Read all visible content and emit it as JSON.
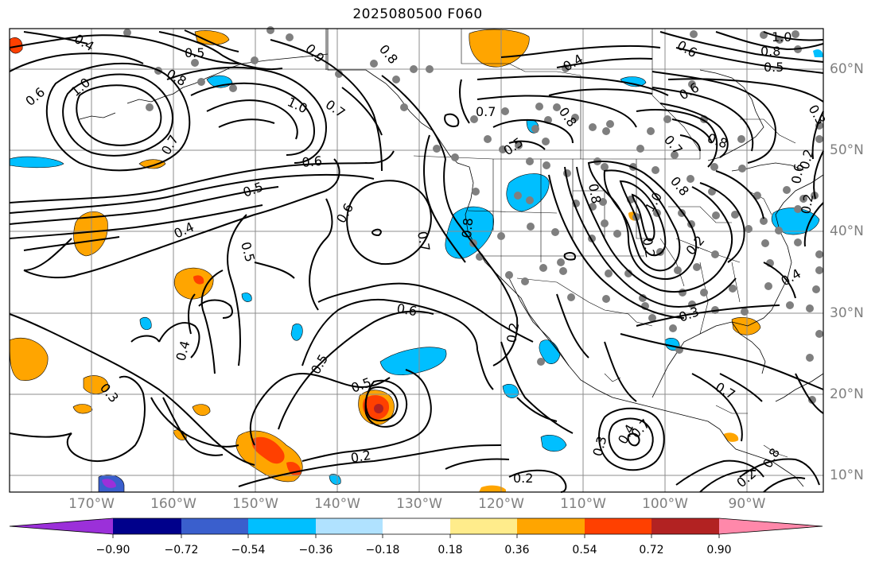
{
  "title": "2025080500 F060",
  "longitude_labels": [
    "170°W",
    "160°W",
    "150°W",
    "140°W",
    "130°W",
    "120°W",
    "110°W",
    "100°W",
    "90°W"
  ],
  "latitude_labels": [
    "60°N",
    "50°N",
    "40°N",
    "30°N",
    "20°N",
    "10°N"
  ],
  "colorbar": {
    "tick_labels": [
      "−0.90",
      "−0.72",
      "−0.54",
      "−0.36",
      "−0.18",
      "0.18",
      "0.36",
      "0.54",
      "0.72",
      "0.90"
    ],
    "colors": [
      "#9b30d9",
      "#00008b",
      "#3a5fcd",
      "#00bfff",
      "#b0e2ff",
      "#ffffff",
      "#ffec8b",
      "#ffa500",
      "#ff4000",
      "#b22222",
      "#ff88aa"
    ]
  },
  "contour_labels": [
    "1.0",
    "0.5",
    "0.8",
    "0.6",
    "1.0",
    "0.7",
    "0.4",
    "0.8",
    "0.9",
    "0.7",
    "0.6",
    "0.5",
    "0.4",
    "0.6",
    "0.7",
    "0.8",
    "0.5",
    "0.6",
    "1.0",
    "0.8",
    "0.6",
    "0.8",
    "1.0",
    "0.5",
    "0.4",
    "0.7",
    "0.8",
    "0.5",
    "0.3",
    "0.4",
    "0.6",
    "0.2",
    "0.2",
    "0.3",
    "0.4",
    "0.2",
    "0.5",
    "0.5",
    "0.2",
    "0.3",
    "0.2",
    "0.7",
    "0.4",
    "0.3",
    "0.2",
    "0.2",
    "0.8",
    "0.8",
    "0.7",
    "0.6",
    "0.8",
    "0.7",
    "0.2"
  ]
}
